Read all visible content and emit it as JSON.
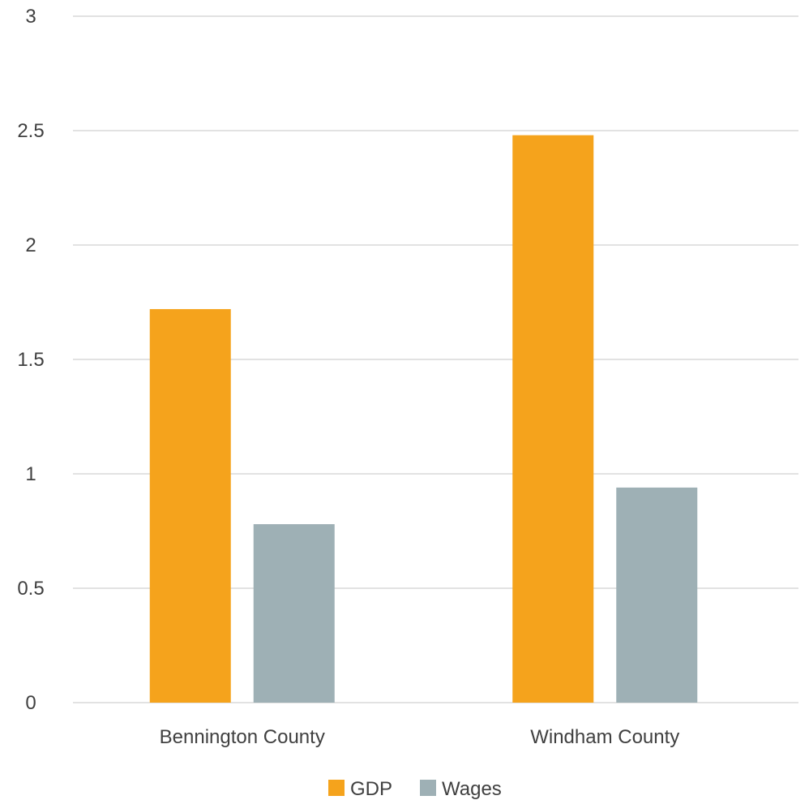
{
  "chart_data": {
    "type": "bar",
    "title": "",
    "xlabel": "",
    "ylabel": "",
    "categories": [
      "Bennington County",
      "Windham County"
    ],
    "series": [
      {
        "name": "GDP",
        "values": [
          1.72,
          2.48
        ],
        "color": "#f5a31c"
      },
      {
        "name": "Wages",
        "values": [
          0.78,
          0.94
        ],
        "color": "#9eb0b5"
      }
    ],
    "ylim": [
      0,
      3
    ],
    "yticks": [
      "0",
      "0.5",
      "1",
      "1.5",
      "2",
      "2.5",
      "3"
    ],
    "grid": true,
    "legend_position": "bottom"
  }
}
